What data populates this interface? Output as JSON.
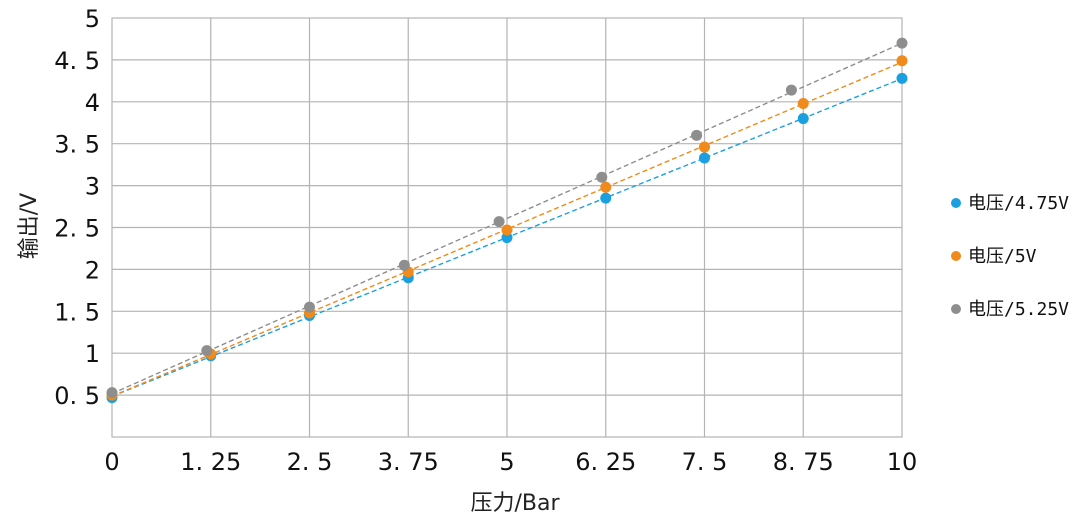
{
  "chart_data": {
    "type": "scatter",
    "title": "",
    "xlabel": "压力/Bar",
    "ylabel": "输出/V",
    "x_tick_labels": [
      "0",
      "1. 25",
      "2. 5",
      "3. 75",
      "5",
      "6. 25",
      "7. 5",
      "8. 75",
      "10"
    ],
    "y_tick_labels": [
      "0. 5",
      "1",
      "1. 5",
      "2",
      "2. 5",
      "3",
      "3. 5",
      "4",
      "4. 5",
      "5"
    ],
    "xlim": [
      0,
      10
    ],
    "ylim": [
      0,
      5
    ],
    "grid": true,
    "legend_position": "right",
    "trendlines": "dashed",
    "series": [
      {
        "name": "电压/4.75V",
        "color": "#1aa0e0",
        "x": [
          0,
          1.25,
          2.5,
          3.75,
          5,
          6.25,
          7.5,
          8.75,
          10
        ],
        "y": [
          0.47,
          0.97,
          1.45,
          1.9,
          2.38,
          2.85,
          3.33,
          3.8,
          4.28
        ]
      },
      {
        "name": "电压/5V",
        "color": "#f08a1a",
        "x": [
          0,
          1.25,
          2.5,
          3.75,
          5,
          6.25,
          7.5,
          8.75,
          10
        ],
        "y": [
          0.5,
          0.99,
          1.48,
          1.97,
          2.47,
          2.98,
          3.46,
          3.98,
          4.49
        ]
      },
      {
        "name": "电压/5.25V",
        "color": "#8e8e8e",
        "x": [
          0,
          1.2,
          2.5,
          3.7,
          4.9,
          6.2,
          7.4,
          8.6,
          10
        ],
        "y": [
          0.53,
          1.03,
          1.55,
          2.05,
          2.57,
          3.1,
          3.6,
          4.14,
          4.7
        ]
      }
    ]
  }
}
